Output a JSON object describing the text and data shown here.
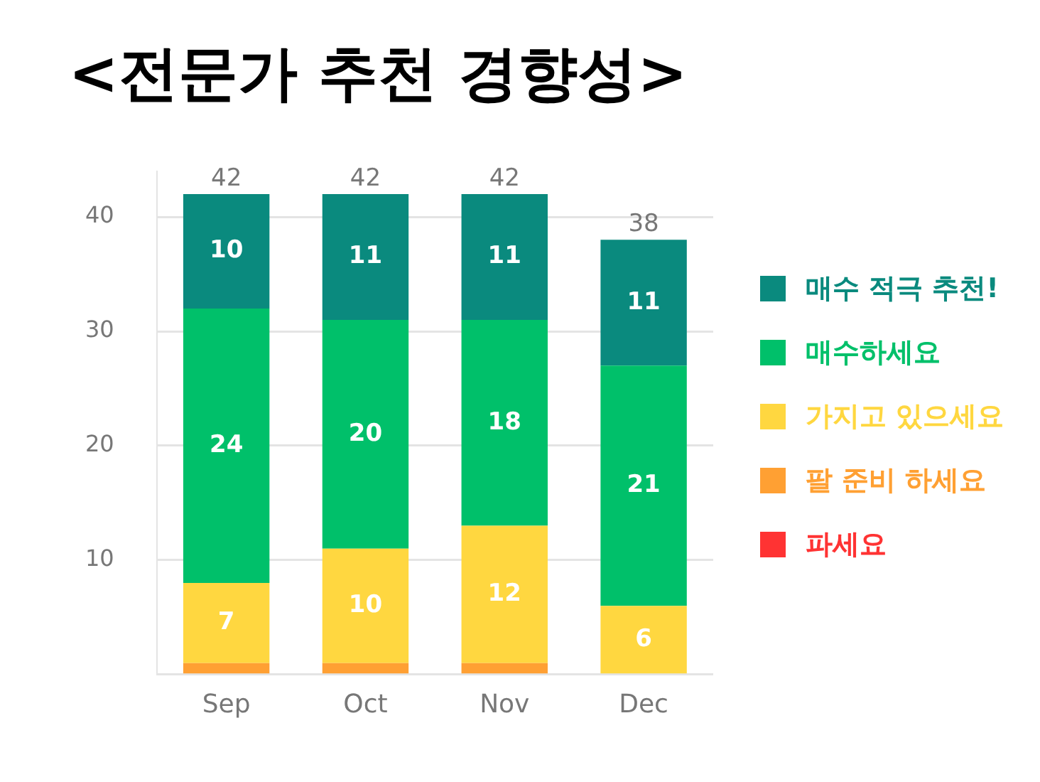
{
  "chart_data": {
    "type": "bar",
    "title": "<전문가 추천 경향성>",
    "categories": [
      "Sep",
      "Oct",
      "Nov",
      "Dec"
    ],
    "stacked": true,
    "series": [
      {
        "name": "파세요",
        "color": "#ff3333",
        "values": [
          0,
          0,
          0,
          0
        ],
        "value_labels": [
          null,
          null,
          null,
          null
        ]
      },
      {
        "name": "팔 준비 하세요",
        "color": "#ffa033",
        "values": [
          1,
          1,
          1,
          0
        ],
        "value_labels": [
          null,
          null,
          null,
          null
        ]
      },
      {
        "name": "가지고 있으세요",
        "color": "#ffd740",
        "values": [
          7,
          10,
          12,
          6
        ],
        "value_labels": [
          "7",
          "10",
          "12",
          "6"
        ]
      },
      {
        "name": "매수하세요",
        "color": "#00c06a",
        "values": [
          24,
          20,
          18,
          21
        ],
        "value_labels": [
          "24",
          "20",
          "18",
          "21"
        ]
      },
      {
        "name": "매수 적극 추천!",
        "color": "#0a8a7e",
        "values": [
          10,
          11,
          11,
          11
        ],
        "value_labels": [
          "10",
          "11",
          "11",
          "11"
        ]
      }
    ],
    "totals": [
      "42",
      "42",
      "42",
      "38"
    ],
    "ylim": [
      0,
      44
    ],
    "yticks": [
      {
        "value": 0,
        "label": null
      },
      10,
      20,
      30,
      40
    ],
    "grid": "y",
    "legend": "right"
  }
}
